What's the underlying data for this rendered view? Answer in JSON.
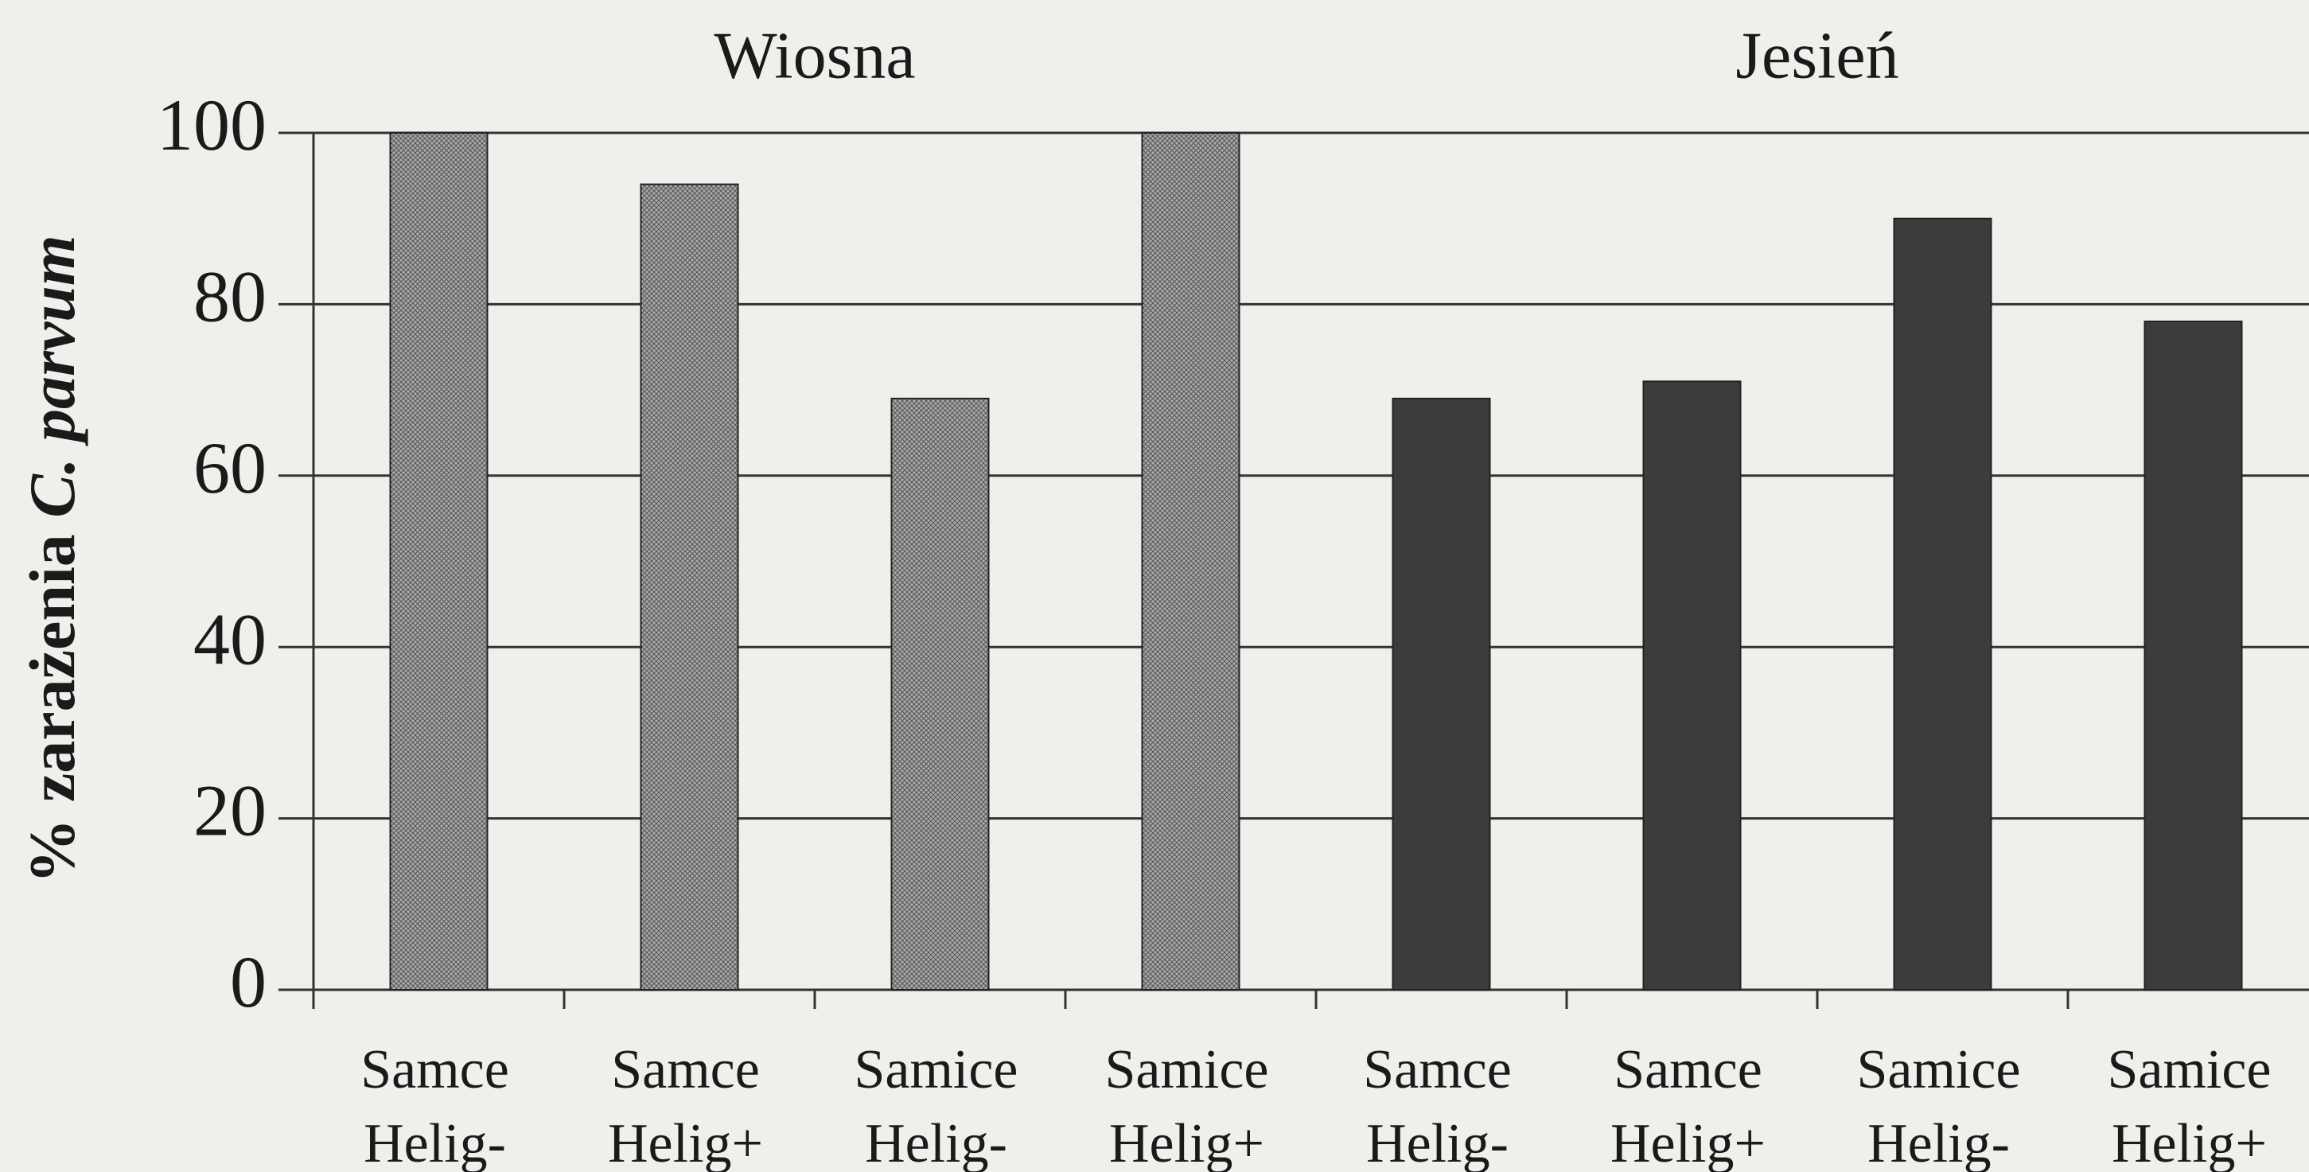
{
  "chart_data": {
    "type": "bar",
    "ylabel": {
      "text": "% zarażenia",
      "italic": "C. parvum"
    },
    "categories": [
      [
        "Samce",
        "Helig-"
      ],
      [
        "Samce",
        "Helig+"
      ],
      [
        "Samice",
        "Helig-"
      ],
      [
        "Samice",
        "Helig+"
      ],
      [
        "Samce",
        "Helig-"
      ],
      [
        "Samce",
        "Helig+"
      ],
      [
        "Samice",
        "Helig-"
      ],
      [
        "Samice",
        "Helig+"
      ]
    ],
    "series": [
      {
        "name": "Wiosna",
        "color": "#a9a9a9",
        "pattern": "crosshatch",
        "values": [
          100,
          94,
          69,
          100,
          null,
          null,
          null,
          null
        ]
      },
      {
        "name": "Jesień",
        "color": "#3c3c3c",
        "values": [
          null,
          null,
          null,
          null,
          69,
          71,
          90,
          78
        ]
      }
    ],
    "ylim": [
      0,
      100
    ],
    "yticks": [
      0,
      20,
      40,
      60,
      80,
      100
    ],
    "grid": true
  }
}
